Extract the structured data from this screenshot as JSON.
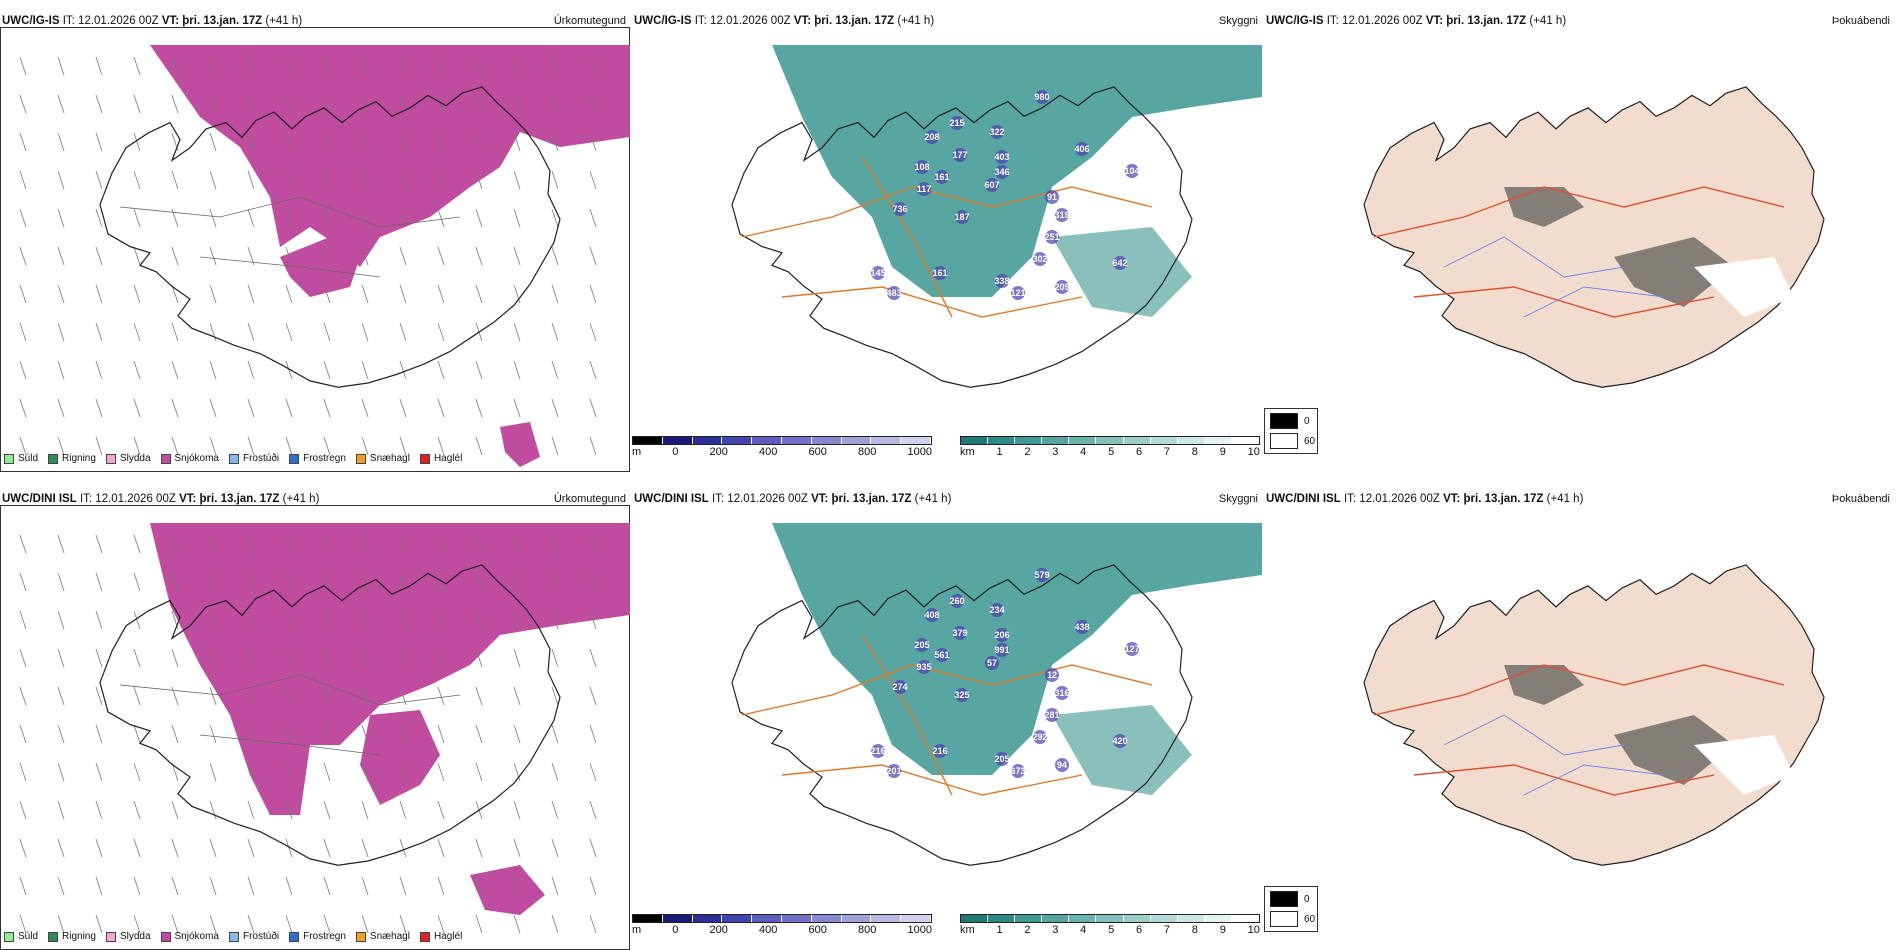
{
  "rows": [
    {
      "model": "UWC/IG-IS",
      "it_label": "IT:",
      "it_value": "12.01.2026 00Z",
      "vt_label": "VT:",
      "vt_value": "þri. 13.jan. 17Z",
      "lead": "(+41 h)",
      "cloud_labels": [
        "980",
        "215",
        "322",
        "208",
        "406",
        "177",
        "403",
        "108",
        "161",
        "607",
        "346",
        "104",
        "117",
        "736",
        "187",
        "91",
        "319",
        "251",
        "302",
        "145",
        "161",
        "338",
        "642",
        "121",
        "209",
        "483"
      ]
    },
    {
      "model": "UWC/DINI ISL",
      "it_label": "IT:",
      "it_value": "12.01.2026 00Z",
      "vt_label": "VT:",
      "vt_value": "þri. 13.jan. 17Z",
      "lead": "(+41 h)",
      "cloud_labels": [
        "579",
        "260",
        "234",
        "408",
        "438",
        "379",
        "206",
        "205",
        "561",
        "57",
        "991",
        "127",
        "935",
        "274",
        "325",
        "12",
        "316",
        "281",
        "292",
        "216",
        "216",
        "205",
        "420",
        "673",
        "94",
        "201"
      ]
    }
  ],
  "param_labels": {
    "precip_type": "Úrkomutegund",
    "visibility": "Skyggni",
    "fog": "Þokuábendi"
  },
  "precip_legend": [
    {
      "label": "Súld",
      "color": "#90ee90"
    },
    {
      "label": "Rigning",
      "color": "#2e8b57"
    },
    {
      "label": "Slydda",
      "color": "#f4a6d7"
    },
    {
      "label": "Snjókoma",
      "color": "#c04ca0"
    },
    {
      "label": "Frostúði",
      "color": "#87b8f0"
    },
    {
      "label": "Frostregn",
      "color": "#2f6fcf"
    },
    {
      "label": "Snæhagl",
      "color": "#f0a020"
    },
    {
      "label": "Haglél",
      "color": "#e02020"
    }
  ],
  "cloud_base_scale": {
    "unit": "m",
    "ticks": [
      "0",
      "200",
      "400",
      "600",
      "800",
      "1000"
    ],
    "colors": [
      "#000000",
      "#1a1a7a",
      "#2e2e9a",
      "#4444b0",
      "#5c5cc0",
      "#7070c8",
      "#8888d0",
      "#a0a0d8",
      "#b8b8e0",
      "#d0d0ea"
    ]
  },
  "visibility_scale": {
    "unit": "km",
    "ticks": [
      "1",
      "2",
      "3",
      "4",
      "5",
      "6",
      "7",
      "8",
      "9",
      "10"
    ],
    "colors": [
      "#1d7a75",
      "#2e8a84",
      "#3f9892",
      "#55a6a0",
      "#6cb3ae",
      "#84c0bc",
      "#9ccdca",
      "#b4dad8",
      "#cce7e5",
      "#e4f3f2",
      "#ffffff"
    ]
  },
  "fog_legend": [
    {
      "label": "0",
      "color": "#000000"
    },
    {
      "label": "60",
      "color": "#ffffff"
    }
  ],
  "colors": {
    "snow": "#c04ca0",
    "vis": "#3b9690",
    "roads": "#e07828",
    "land": "#f2dccd",
    "rivers": "#6f86e8"
  }
}
